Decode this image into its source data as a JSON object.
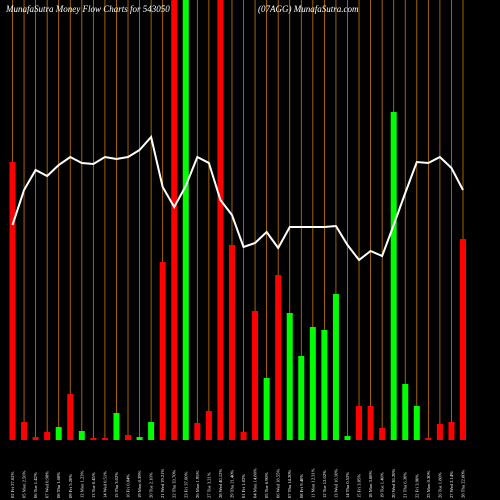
{
  "chart_data": {
    "type": "bar",
    "title": "MunafaSutra  Money Flow  Charts for 543050",
    "subtitle": "(07AGG) MunafaSutra.com",
    "categories": [
      "02 Fri 27.62%",
      "05 Mon 2.56%",
      "06 Tue 1.42%",
      "07 Wed 0.98%",
      "08 Thu 1.68%",
      "09 Fri 5.20%",
      "12 Mon 1.23%",
      "13 Tue 0.45%",
      "14 Wed 0.51%",
      "15 Thu 3.02%",
      "16 Fri 0.84%",
      "19 Mon 0.39%",
      "20 Tue 2.10%",
      "21 Wed 19.21%",
      "22 Thu 33.70%",
      "23 Fri 37.60%",
      "26 Mon 1.95%",
      "27 Tue 3.21%",
      "28 Wed 40.12%",
      "29 Thu 21.40%",
      "01 Fri 1.02%",
      "04 Mon 14.80%",
      "05 Tue 6.90%",
      "06 Wed 18.55%",
      "07 Thu 14.20%",
      "08 Fri 9.40%",
      "11 Mon 12.31%",
      "12 Tue 12.02%",
      "13 Wed 16.10%",
      "14 Thu 0.52%",
      "15 Fri 3.85%",
      "18 Mon 3.88%",
      "19 Tue 1.40%",
      "20 Wed 36.20%",
      "21 Thu 6.30%",
      "22 Fri 3.90%",
      "25 Mon 0.30%",
      "26 Tue 1.80%",
      "27 Wed 2.14%",
      "28 Thu 22.80%"
    ],
    "values": [
      278,
      18,
      3,
      8,
      13,
      46,
      9,
      2,
      2,
      27,
      5,
      3,
      18,
      178,
      440,
      440,
      17,
      29,
      440,
      195,
      8,
      129,
      62,
      165,
      127,
      84,
      113,
      110,
      146,
      4,
      34,
      34,
      12,
      328,
      56,
      34,
      2,
      16,
      18,
      201
    ],
    "colors": [
      "#ff0000",
      "#ff0000",
      "#ff0000",
      "#ff0000",
      "#00ff00",
      "#ff0000",
      "#00ff00",
      "#ff0000",
      "#ff0000",
      "#00ff00",
      "#ff0000",
      "#00ff00",
      "#00ff00",
      "#ff0000",
      "#ff0000",
      "#00ff00",
      "#ff0000",
      "#ff0000",
      "#ff0000",
      "#ff0000",
      "#ff0000",
      "#ff0000",
      "#00ff00",
      "#ff0000",
      "#00ff00",
      "#00ff00",
      "#00ff00",
      "#00ff00",
      "#00ff00",
      "#00ff00",
      "#ff0000",
      "#ff0000",
      "#ff0000",
      "#00ff00",
      "#00ff00",
      "#00ff00",
      "#ff0000",
      "#ff0000",
      "#ff0000",
      "#ff0000"
    ],
    "line": {
      "color": "#ffffff",
      "values": [
        215,
        250,
        270,
        264,
        275,
        283,
        277,
        276,
        283,
        281,
        283,
        290,
        303,
        253,
        233,
        254,
        283,
        277,
        240,
        225,
        193,
        197,
        208,
        192,
        213,
        213,
        213,
        213,
        214,
        195,
        180,
        189,
        184,
        215,
        247,
        278,
        277,
        283,
        272,
        250
      ]
    },
    "ylim": [
      0,
      440
    ],
    "grid_color": "#cc7a00"
  }
}
